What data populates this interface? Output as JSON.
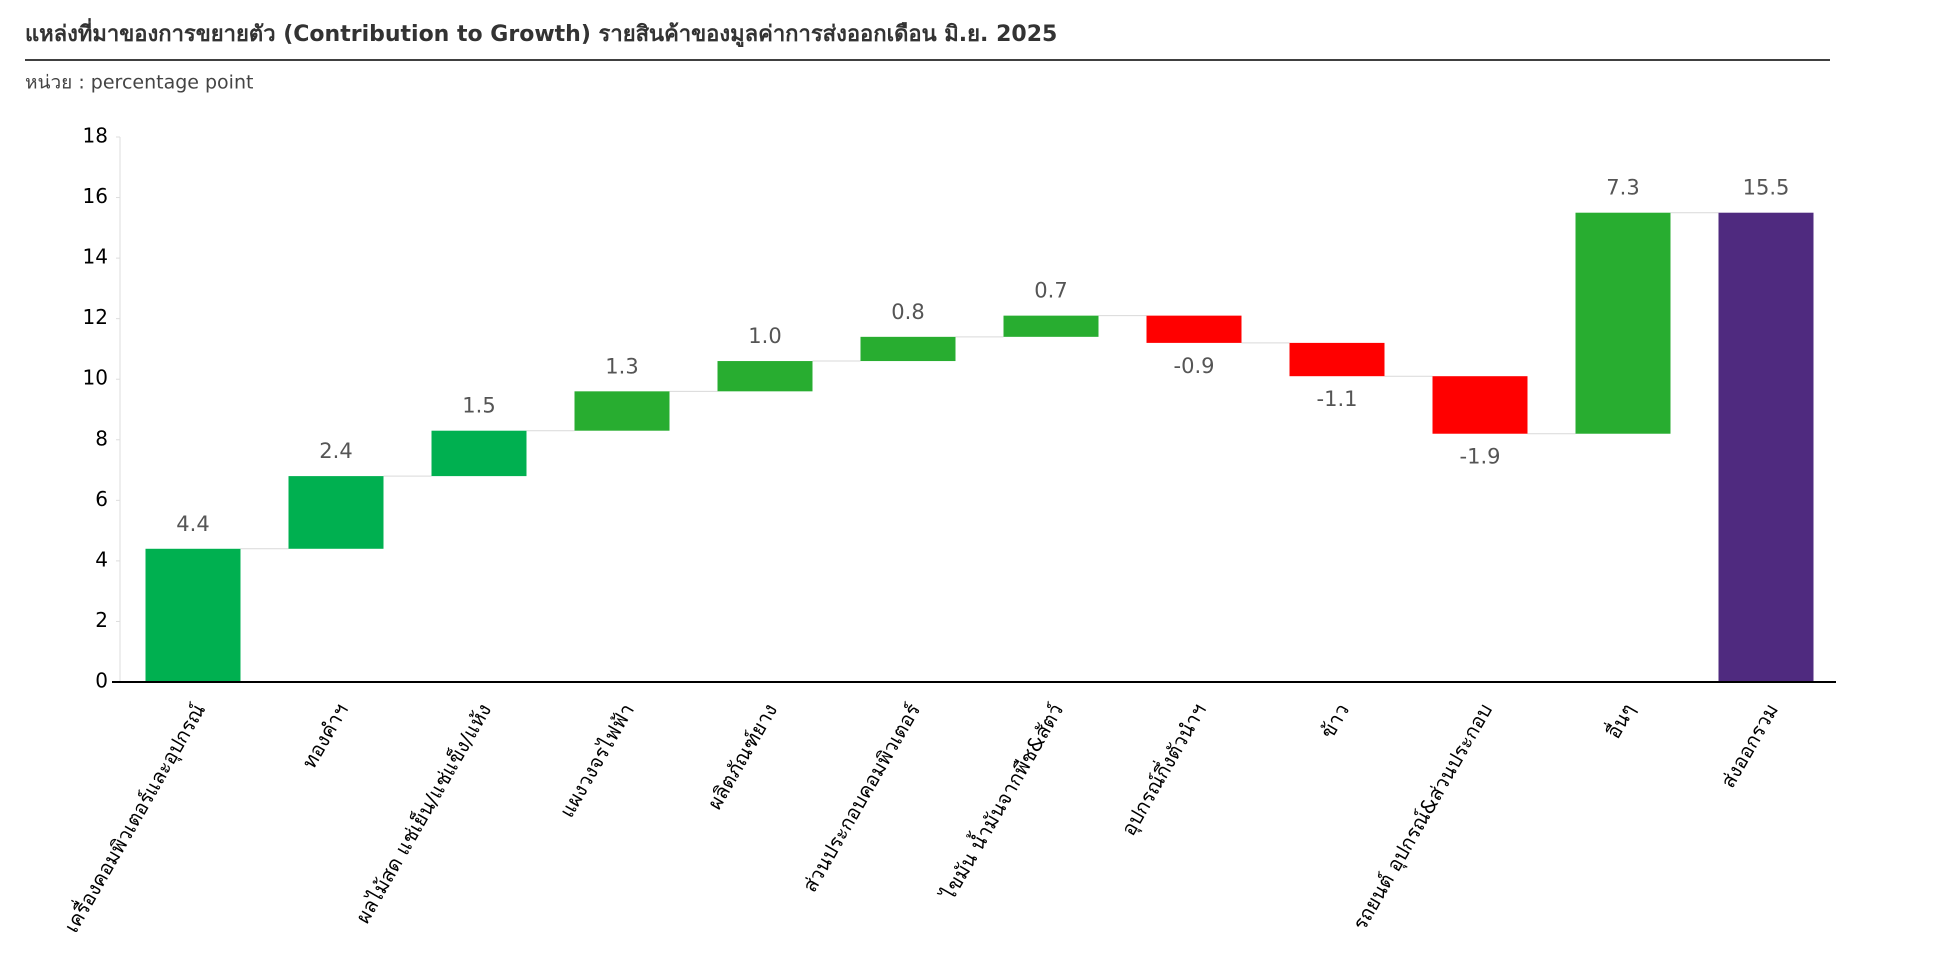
{
  "chart_data": {
    "type": "waterfall",
    "title": "แหล่งที่มาของการขยายตัว (Contribution to Growth) รายสินค้าของมูลค่าการส่งออกเดือน มิ.ย. 2025",
    "subtitle": "หน่วย : percentage point",
    "categories": [
      "เครื่องคอมพิวเตอร์และอุปกรณ์",
      "ทองคำฯ",
      "ผลไม้สด แช่เย็น/แช่แข็ง/แห้ง",
      "แผงวงจรไฟฟ้า",
      "ผลิตภัณฑ์ยาง",
      "ส่วนประกอบคอมพิวเตอร์",
      "ไขมัน น้ำมันจากพืช&สัตว์",
      "อุปกรณ์กึ่งตัวนำฯ",
      "ข้าว",
      "รถยนต์ อุปกรณ์&ส่วนประกอบ",
      "อื่นๆ",
      "ส่งออกรวม"
    ],
    "values": [
      4.4,
      2.4,
      1.5,
      1.3,
      1.0,
      0.8,
      0.7,
      -0.9,
      -1.1,
      -1.9,
      7.3,
      15.5
    ],
    "value_labels": [
      "4.4",
      "2.4",
      "1.5",
      "1.3",
      "1.0",
      "0.8",
      "0.7",
      "-0.9",
      "-1.1",
      "-1.9",
      "7.3",
      "15.5"
    ],
    "measure": [
      "relative",
      "relative",
      "relative",
      "relative",
      "relative",
      "relative",
      "relative",
      "relative",
      "relative",
      "relative",
      "relative",
      "total"
    ],
    "colors": [
      "#00b050",
      "#00b050",
      "#00b050",
      "#28ad30",
      "#28ad30",
      "#28ad30",
      "#28ad30",
      "#ff0000",
      "#ff0000",
      "#ff0000",
      "#28ad30",
      "#4f2a7f"
    ],
    "ylim": [
      0,
      18
    ],
    "yticks": [
      0,
      2,
      4,
      6,
      8,
      10,
      12,
      14,
      16,
      18
    ]
  }
}
